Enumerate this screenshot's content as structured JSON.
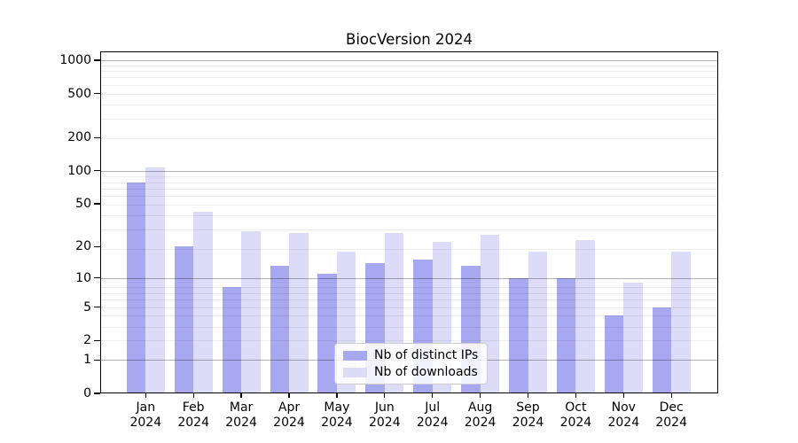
{
  "chart_data": {
    "type": "bar",
    "title": "BiocVersion 2024",
    "categories": [
      "Jan",
      "Feb",
      "Mar",
      "Apr",
      "May",
      "Jun",
      "Jul",
      "Aug",
      "Sep",
      "Oct",
      "Nov",
      "Dec"
    ],
    "x_year": "2024",
    "series": [
      {
        "name": "Nb of distinct IPs",
        "color": "#a8a8f0",
        "values": [
          78,
          20,
          8,
          13,
          11,
          14,
          15,
          13,
          10,
          10,
          4,
          5
        ]
      },
      {
        "name": "Nb of downloads",
        "color": "#dcdcf8",
        "values": [
          108,
          42,
          28,
          27,
          18,
          27,
          22,
          26,
          18,
          23,
          9,
          18
        ]
      }
    ],
    "yscale": "log10(x+1)",
    "yticks": [
      0,
      1,
      2,
      5,
      10,
      20,
      50,
      100,
      200,
      500,
      1000
    ],
    "ylim": [
      0,
      1200
    ],
    "xlabel": "",
    "ylabel": "",
    "grid": "horizontal, minor and major",
    "legend_position": "bottom-center inside plot"
  }
}
